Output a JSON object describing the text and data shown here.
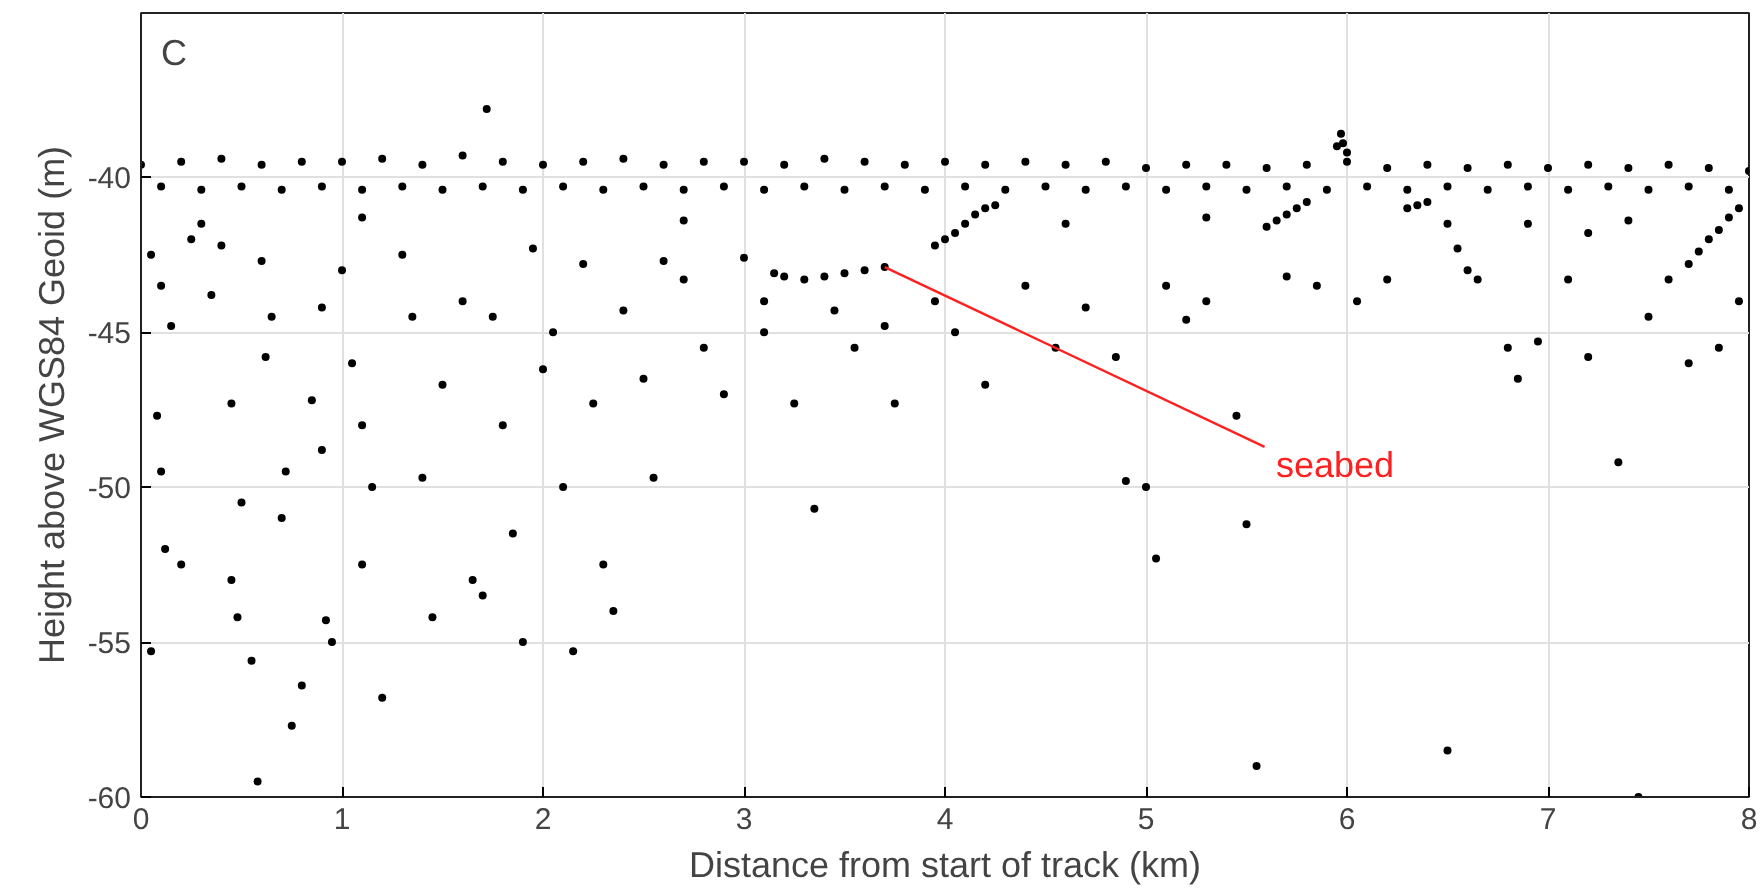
{
  "chart_data": {
    "type": "scatter",
    "xlabel": "Distance from start of track (km)",
    "ylabel": "Height above WGS84 Geoid (m)",
    "xlim": [
      0,
      8
    ],
    "ylim": [
      -60,
      -34.7
    ],
    "xticks": [
      0,
      1,
      2,
      3,
      4,
      5,
      6,
      7,
      8
    ],
    "yticks": [
      -60,
      -55,
      -50,
      -45,
      -40
    ],
    "grid": true,
    "marker": "circle",
    "annotations": [
      "C",
      {
        "text": "seabed",
        "x": 3.7,
        "y": -42.9
      }
    ],
    "series": [
      {
        "color": "#000000",
        "x": [
          0,
          0.2,
          0.4,
          0.6,
          0.8,
          1,
          1.2,
          1.4,
          1.6,
          1.8,
          2,
          2.2,
          2.4,
          2.6,
          2.8,
          3,
          3.2,
          3.4,
          3.6,
          3.8,
          4,
          4.2,
          4.4,
          4.6,
          4.8,
          5,
          5.2,
          5.4,
          5.6,
          5.8,
          6,
          6.2,
          6.4,
          6.6,
          6.8,
          7,
          7.2,
          7.4,
          7.6,
          7.8,
          8,
          0.1,
          0.3,
          0.5,
          0.7,
          0.9,
          1.1,
          1.3,
          1.5,
          1.7,
          1.9,
          2.1,
          2.3,
          2.5,
          2.7,
          2.9,
          3.1,
          3.3,
          3.5,
          3.7,
          3.9,
          4.1,
          4.3,
          4.5,
          4.7,
          4.9,
          5.1,
          5.3,
          5.5,
          5.7,
          5.9,
          6.1,
          6.3,
          6.5,
          6.7,
          6.9,
          7.1,
          7.3,
          7.5,
          7.7,
          7.9,
          5.95,
          5.97,
          6.0,
          5.98,
          1.72
        ],
        "values": [
          -39.6,
          -39.5,
          -39.4,
          -39.6,
          -39.5,
          -39.5,
          -39.4,
          -39.6,
          -39.3,
          -39.5,
          -39.6,
          -39.5,
          -39.4,
          -39.6,
          -39.5,
          -39.5,
          -39.6,
          -39.4,
          -39.5,
          -39.6,
          -39.5,
          -39.6,
          -39.5,
          -39.6,
          -39.5,
          -39.7,
          -39.6,
          -39.6,
          -39.7,
          -39.6,
          -39.5,
          -39.7,
          -39.6,
          -39.7,
          -39.6,
          -39.7,
          -39.6,
          -39.7,
          -39.6,
          -39.7,
          -39.8,
          -40.3,
          -40.4,
          -40.3,
          -40.4,
          -40.3,
          -40.4,
          -40.3,
          -40.4,
          -40.3,
          -40.4,
          -40.3,
          -40.4,
          -40.3,
          -40.4,
          -40.3,
          -40.4,
          -40.3,
          -40.4,
          -40.3,
          -40.4,
          -40.3,
          -40.4,
          -40.3,
          -40.4,
          -40.3,
          -40.4,
          -40.3,
          -40.4,
          -40.3,
          -40.4,
          -40.3,
          -40.4,
          -40.3,
          -40.4,
          -40.3,
          -40.4,
          -40.3,
          -40.4,
          -40.3,
          -40.4,
          -39.0,
          -38.6,
          -39.2,
          -38.9,
          -37.8
        ]
      },
      {
        "color": "#000000",
        "x": [
          0.05,
          0.1,
          0.15,
          0.08,
          0.1,
          0.12,
          0.2,
          0.05,
          0.25,
          0.35,
          0.4,
          0.45,
          0.5,
          0.48,
          0.45,
          0.55,
          0.6,
          0.62,
          0.65,
          0.7,
          0.72,
          0.75,
          0.8,
          0.58,
          0.9,
          0.85,
          0.9,
          0.92,
          0.95,
          1.0,
          1.05,
          1.1,
          1.1,
          1.15,
          1.2,
          1.3,
          1.35,
          1.4,
          1.45,
          1.5,
          1.6,
          1.65,
          1.7,
          1.75,
          1.8,
          1.85,
          1.9,
          1.95,
          2.0,
          2.05,
          2.1,
          2.15,
          2.2,
          2.25,
          2.3,
          2.35,
          2.4,
          2.5,
          2.55,
          2.6,
          2.7,
          2.8,
          2.9,
          3.0,
          3.1,
          3.15,
          3.2,
          3.3,
          3.4,
          3.5,
          3.6,
          3.7,
          3.1,
          3.25,
          3.35,
          3.45,
          3.55,
          3.7,
          3.75,
          3.95,
          4.0,
          4.05,
          4.1,
          4.15,
          4.2,
          4.25,
          3.95,
          4.05,
          4.2,
          4.4,
          4.55,
          4.7,
          4.85,
          4.9,
          5.0,
          5.05,
          5.1,
          5.2,
          5.3,
          5.45,
          5.5,
          5.55,
          5.6,
          5.65,
          5.7,
          5.75,
          5.8,
          5.7,
          5.85,
          6.05,
          6.2,
          6.3,
          6.35,
          6.4,
          6.5,
          6.55,
          6.6,
          6.65,
          6.5,
          6.8,
          6.85,
          6.95,
          7.1,
          7.2,
          7.35,
          7.45,
          7.5,
          7.6,
          7.7,
          7.75,
          7.8,
          7.85,
          7.9,
          7.95,
          7.7,
          7.85,
          7.95,
          7.2,
          6.9,
          2.7,
          1.1,
          0.3,
          4.6,
          5.3,
          7.4
        ],
        "values": [
          -42.5,
          -43.5,
          -44.8,
          -47.7,
          -49.5,
          -52,
          -52.5,
          -55.3,
          -42,
          -43.8,
          -42.2,
          -47.3,
          -50.5,
          -54.2,
          -53,
          -55.6,
          -42.7,
          -45.8,
          -44.5,
          -51,
          -49.5,
          -57.7,
          -56.4,
          -59.5,
          -44.2,
          -47.2,
          -48.8,
          -54.3,
          -55,
          -43,
          -46,
          -48,
          -52.5,
          -50,
          -56.8,
          -42.5,
          -44.5,
          -49.7,
          -54.2,
          -46.7,
          -44,
          -53,
          -53.5,
          -44.5,
          -48,
          -51.5,
          -55,
          -42.3,
          -46.2,
          -45,
          -50,
          -55.3,
          -42.8,
          -47.3,
          -52.5,
          -54,
          -44.3,
          -46.5,
          -49.7,
          -42.7,
          -43.3,
          -45.5,
          -47,
          -42.6,
          -44,
          -43.1,
          -43.2,
          -43.3,
          -43.2,
          -43.1,
          -43.0,
          -42.9,
          -45,
          -47.3,
          -50.7,
          -44.3,
          -45.5,
          -44.8,
          -47.3,
          -42.2,
          -42,
          -41.8,
          -41.5,
          -41.2,
          -41,
          -40.9,
          -44,
          -45,
          -46.7,
          -43.5,
          -45.5,
          -44.2,
          -45.8,
          -49.8,
          -50,
          -52.3,
          -43.5,
          -44.6,
          -44,
          -47.7,
          -51.2,
          -59,
          -41.6,
          -41.4,
          -41.2,
          -41.0,
          -40.8,
          -43.2,
          -43.5,
          -44,
          -43.3,
          -41,
          -40.9,
          -40.8,
          -41.5,
          -42.3,
          -43,
          -43.3,
          -58.5,
          -45.5,
          -46.5,
          -45.3,
          -43.3,
          -45.8,
          -49.2,
          -60,
          -44.5,
          -43.3,
          -42.8,
          -42.4,
          -42,
          -41.7,
          -41.3,
          -41,
          -46,
          -45.5,
          -44,
          -41.8,
          -41.5,
          -41.4,
          -41.3,
          -41.5,
          -41.5,
          -41.3,
          -41.4
        ]
      }
    ]
  }
}
